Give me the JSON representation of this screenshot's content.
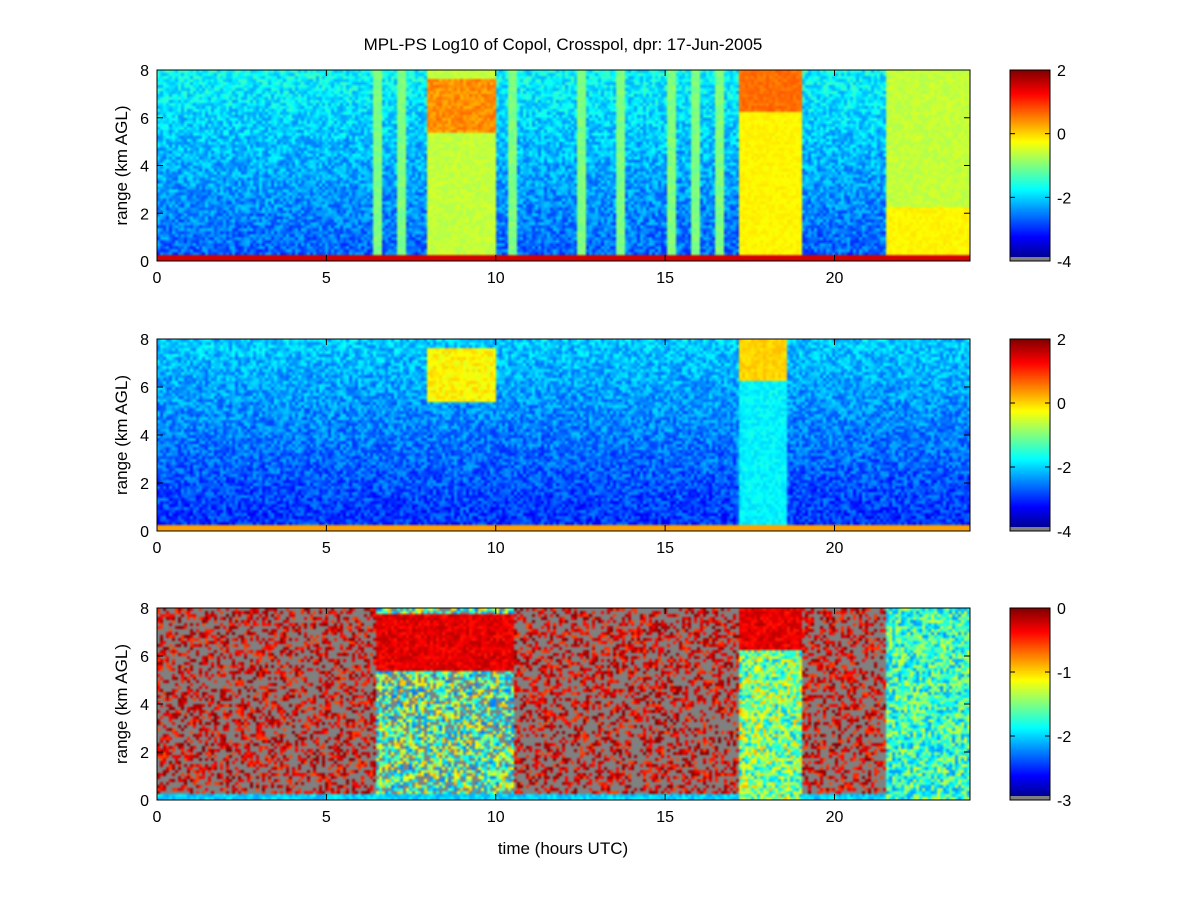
{
  "figure": {
    "title": "MPL-PS Log10 of Copol, Crosspol, dpr: 17-Jun-2005",
    "xlabel": "time (hours UTC)"
  },
  "chart_data": [
    {
      "type": "heatmap",
      "variable": "log10 copol",
      "ylabel": "range (km AGL)",
      "xlim": [
        0,
        24
      ],
      "ylim": [
        0,
        8
      ],
      "xticks": [
        0,
        5,
        10,
        15,
        20
      ],
      "yticks": [
        0,
        2,
        4,
        6,
        8
      ],
      "clim": [
        -4,
        2
      ],
      "cticks": [
        2,
        0,
        -2,
        -4
      ],
      "colormap": "jet",
      "features": {
        "surface_layer_km": [
          0,
          0.2
        ],
        "cloud_layer_km": [
          5.4,
          7.6
        ],
        "cloud_layer_hours": [
          8.0,
          10.0
        ],
        "precip_shafts_hours": [
          6.5,
          7.2,
          8.1,
          8.5,
          9.0,
          9.3,
          10.5,
          12.5,
          13.7,
          15.2,
          15.9,
          16.6
        ],
        "high_signal_hours": [
          17.2,
          19.0
        ],
        "elevated_signal_hours": [
          21.5,
          24.0
        ]
      }
    },
    {
      "type": "heatmap",
      "variable": "log10 crosspol",
      "ylabel": "range (km AGL)",
      "xlim": [
        0,
        24
      ],
      "ylim": [
        0,
        8
      ],
      "xticks": [
        0,
        5,
        10,
        15,
        20
      ],
      "yticks": [
        0,
        2,
        4,
        6,
        8
      ],
      "clim": [
        -4,
        2
      ],
      "cticks": [
        2,
        0,
        -2,
        -4
      ],
      "colormap": "jet",
      "features": {
        "surface_layer_km": [
          0,
          0.2
        ],
        "cloud_layer_km": [
          5.4,
          7.6
        ],
        "cloud_layer_hours": [
          8.0,
          10.0
        ],
        "high_signal_hours": [
          17.2,
          18.6
        ]
      }
    },
    {
      "type": "heatmap",
      "variable": "log10 dpr",
      "ylabel": "range (km AGL)",
      "xlim": [
        0,
        24
      ],
      "ylim": [
        0,
        8
      ],
      "xticks": [
        0,
        5,
        10,
        15,
        20
      ],
      "yticks": [
        0,
        2,
        4,
        6,
        8
      ],
      "clim": [
        -3,
        0
      ],
      "cticks": [
        0,
        -1,
        -2,
        -3
      ],
      "colormap": "jet",
      "missing_color": "#808080",
      "features": {
        "cloud_layer_km": [
          5.4,
          7.8
        ],
        "cloud_layer_hours": [
          6.5,
          10.5
        ],
        "high_dpr_hours": [
          17.2,
          19.0
        ]
      }
    }
  ]
}
